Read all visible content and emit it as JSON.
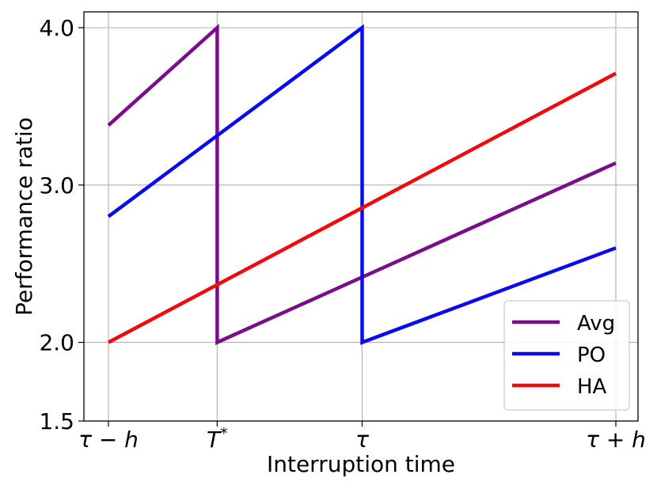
{
  "chart_data": {
    "type": "line",
    "title": "",
    "xlabel": "Interruption time",
    "ylabel": "Performance ratio",
    "x_ticks": [
      {
        "x": -1.0,
        "base": "τ − h",
        "italic_base": true,
        "sup": ""
      },
      {
        "x": -0.5714,
        "base": "T",
        "italic_base": true,
        "sup": "*"
      },
      {
        "x": 0.0,
        "base": "τ",
        "italic_base": true,
        "sup": ""
      },
      {
        "x": 1.0,
        "base": "τ + h",
        "italic_base": true,
        "sup": ""
      }
    ],
    "y_ticks": [
      {
        "y": 1.5,
        "label": "1.5"
      },
      {
        "y": 2.0,
        "label": "2.0"
      },
      {
        "y": 3.0,
        "label": "3.0"
      },
      {
        "y": 4.0,
        "label": "4.0"
      }
    ],
    "xlim": [
      -1.0,
      1.0
    ],
    "ylim": [
      1.5,
      4.0
    ],
    "grid": true,
    "legend_position": "lower-right",
    "series": [
      {
        "name": "Avg",
        "color": "#7B0C8C",
        "points": [
          [
            -1.0,
            3.38
          ],
          [
            -0.5714,
            4.0
          ],
          [
            -0.5714,
            2.0
          ],
          [
            1.0,
            3.14
          ]
        ]
      },
      {
        "name": "PO",
        "color": "#0A0AF2",
        "points": [
          [
            -1.0,
            2.8
          ],
          [
            0.0,
            4.0
          ],
          [
            0.0,
            2.0
          ],
          [
            1.0,
            2.6
          ]
        ]
      },
      {
        "name": "HA",
        "color": "#F20A0A",
        "points": [
          [
            -1.0,
            2.0
          ],
          [
            1.0,
            3.71
          ]
        ]
      }
    ]
  }
}
